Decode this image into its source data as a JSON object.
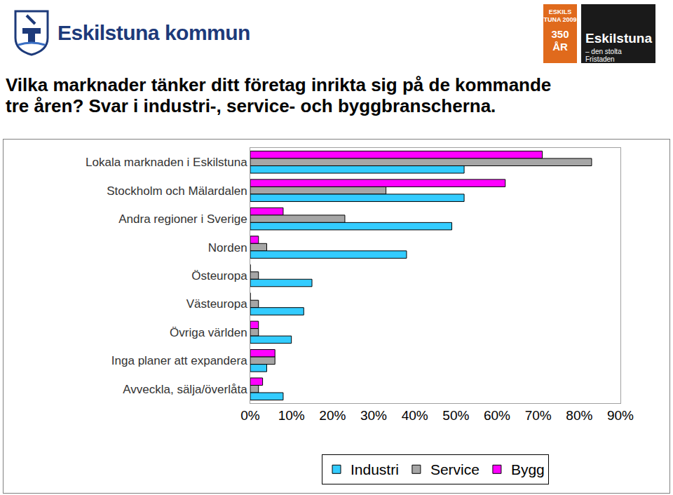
{
  "header": {
    "left": "Eskilstuna kommun",
    "badge_top": "ESKILS TUNA 2009",
    "badge_main": "350 ÅR",
    "right": "Eskilstuna",
    "right_sub": "– den stolta Fristaden"
  },
  "chart_data": {
    "type": "bar",
    "orientation": "horizontal",
    "title": "Vilka marknader tänker ditt företag inrikta sig på de kommande\ntre åren? Svar i industri-, service- och byggbranscherna.",
    "categories": [
      "Lokala marknaden i Eskilstuna",
      "Stockholm och Mälardalen",
      "Andra regioner i Sverige",
      "Norden",
      "Östeuropa",
      "Västeuropa",
      "Övriga världen",
      "Inga planer att expandera",
      "Avveckla, sälja/överlåta"
    ],
    "series": [
      {
        "name": "Industri",
        "color": "#33ccff",
        "values": [
          52,
          52,
          49,
          38,
          15,
          13,
          10,
          4,
          8
        ]
      },
      {
        "name": "Service",
        "color": "#a6a6a6",
        "values": [
          83,
          33,
          23,
          4,
          2,
          2,
          2,
          6,
          2
        ]
      },
      {
        "name": "Bygg",
        "color": "#ff00ff",
        "values": [
          71,
          62,
          8,
          2,
          0,
          0,
          2,
          6,
          3
        ]
      }
    ],
    "xlim": [
      0,
      90
    ],
    "xticks": [
      {
        "value": 0,
        "label": "0%"
      },
      {
        "value": 10,
        "label": "10%"
      },
      {
        "value": 20,
        "label": "20%"
      },
      {
        "value": 30,
        "label": "30%"
      },
      {
        "value": 40,
        "label": "40%"
      },
      {
        "value": 50,
        "label": "50%"
      },
      {
        "value": 60,
        "label": "60%"
      },
      {
        "value": 70,
        "label": "70%"
      },
      {
        "value": 80,
        "label": "80%"
      },
      {
        "value": 90,
        "label": "90%"
      }
    ],
    "grid": false,
    "legend": "bottom"
  }
}
